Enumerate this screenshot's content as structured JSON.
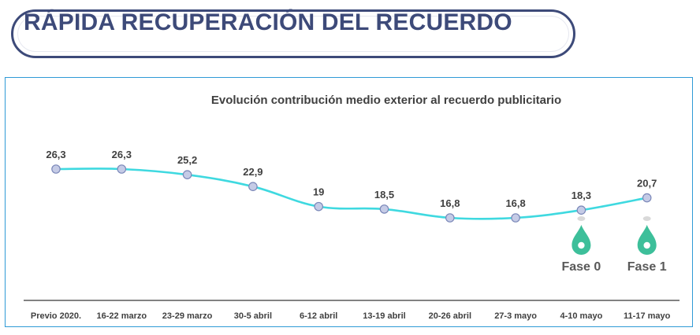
{
  "header": {
    "title": "RÁPIDA RECUPERACIÓN DEL RECUERDO"
  },
  "colors": {
    "title": "#3d4a79",
    "line": "#3fd9e0",
    "marker_fill": "#c5cbe6",
    "marker_stroke": "#7a87b8",
    "pin": "#3dbf9a",
    "frame": "#2f9ad6"
  },
  "chart_data": {
    "type": "line",
    "title": "Evolución contribución medio exterior al recuerdo publicitario",
    "categories": [
      "Previo 2020.",
      "16-22 marzo",
      "23-29 marzo",
      "30-5 abril",
      "6-12 abril",
      "13-19 abril",
      "20-26 abril",
      "27-3 mayo",
      "4-10 mayo",
      "11-17 mayo"
    ],
    "values": [
      26.3,
      26.3,
      25.2,
      22.9,
      19,
      18.5,
      16.8,
      16.8,
      18.3,
      20.7
    ],
    "value_labels": [
      "26,3",
      "26,3",
      "25,2",
      "22,9",
      "19",
      "18,5",
      "16,8",
      "16,8",
      "18,3",
      "20,7"
    ],
    "ylim": [
      16.8,
      26.3
    ],
    "xlabel": "",
    "ylabel": "",
    "grid": false,
    "annotations": [
      {
        "category_index": 8,
        "icon": "location-pin-icon",
        "label": "Fase 0"
      },
      {
        "category_index": 9,
        "icon": "location-pin-icon",
        "label": "Fase 1"
      }
    ]
  }
}
